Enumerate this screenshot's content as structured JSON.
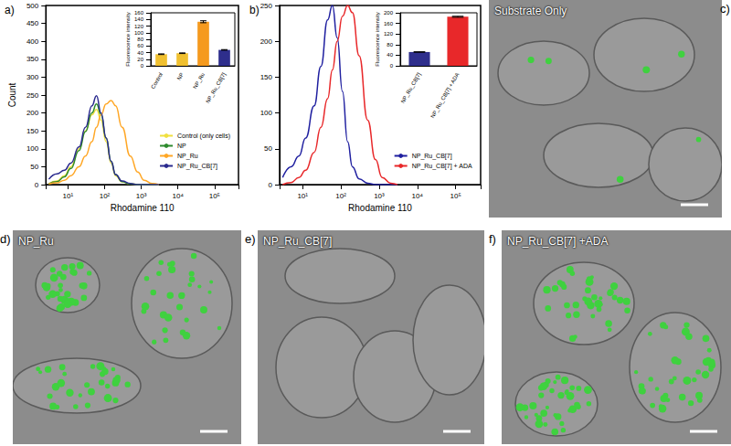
{
  "chart_data": [
    {
      "type": "line",
      "title": "a)",
      "x": [
        3,
        5,
        8,
        12,
        20,
        30,
        45,
        60,
        80,
        110,
        150,
        200,
        300,
        500,
        800,
        1200,
        2000,
        3000
      ],
      "series": [
        {
          "name": "Control (only cells)",
          "color": "#f0e040",
          "values": [
            2,
            10,
            25,
            50,
            100,
            150,
            195,
            210,
            180,
            120,
            60,
            25,
            8,
            2,
            0,
            0,
            0,
            0
          ]
        },
        {
          "name": "NP",
          "color": "#2e8b2e",
          "values": [
            2,
            8,
            22,
            45,
            95,
            148,
            200,
            225,
            195,
            130,
            65,
            28,
            8,
            2,
            0,
            0,
            0,
            0
          ]
        },
        {
          "name": "NP_Ru",
          "color": "#ffa726",
          "values": [
            2,
            5,
            12,
            25,
            50,
            80,
            120,
            160,
            195,
            225,
            235,
            220,
            160,
            80,
            35,
            12,
            3,
            0
          ]
        },
        {
          "name": "NP_Ru_CB[7]",
          "color": "#2b2b8f",
          "values": [
            15,
            30,
            40,
            60,
            105,
            160,
            220,
            248,
            200,
            130,
            65,
            28,
            10,
            3,
            0,
            0,
            0,
            0
          ]
        }
      ],
      "xlabel": "Rhodamine 110",
      "ylabel": "Count",
      "log": "x",
      "xlim": [
        2.5,
        450000
      ],
      "xticks": [
        {
          "value": 10,
          "label": "10¹"
        },
        {
          "value": 100,
          "label": "10²"
        },
        {
          "value": 1000,
          "label": "10³"
        },
        {
          "value": 10000,
          "label": "10⁴"
        },
        {
          "value": 100000,
          "label": "10⁵"
        }
      ],
      "ylim": [
        0,
        500
      ],
      "yticks": [
        0,
        50,
        100,
        150,
        200,
        250,
        300,
        350,
        400,
        450,
        500
      ],
      "legend": "lower right"
    },
    {
      "type": "bar",
      "categories": [
        "Control",
        "NP",
        "NP_Ru",
        "NP_Ru_CB[7]"
      ],
      "values": [
        35,
        38,
        133,
        48
      ],
      "errors": [
        1,
        1,
        3,
        1
      ],
      "colors": [
        "#f0c030",
        "#f0c030",
        "#f59a1e",
        "#2e2e8c"
      ],
      "ylabel": "Fluorescence intensity",
      "ylim": [
        0,
        160
      ],
      "yticks": [
        0,
        20,
        40,
        60,
        80,
        100,
        120,
        140,
        160
      ]
    },
    {
      "type": "line",
      "title": "b)",
      "x": [
        3,
        5,
        8,
        12,
        20,
        30,
        45,
        60,
        80,
        110,
        150,
        200,
        300,
        500,
        800,
        1200,
        2000,
        3000
      ],
      "series": [
        {
          "name": "NP_Ru_CB[7]",
          "color": "#2020a0",
          "values": [
            10,
            25,
            40,
            65,
            110,
            165,
            230,
            250,
            205,
            130,
            60,
            25,
            8,
            2,
            0,
            0,
            0,
            0
          ]
        },
        {
          "name": "NP_Ru_CB[7] + ADA",
          "color": "#e8282a",
          "values": [
            0,
            3,
            10,
            20,
            45,
            80,
            120,
            160,
            200,
            235,
            250,
            240,
            180,
            90,
            35,
            10,
            2,
            0
          ]
        }
      ],
      "xlabel": "Rhodamine 110",
      "log": "x",
      "xlim": [
        2.5,
        450000
      ],
      "xticks": [
        {
          "value": 10,
          "label": "10¹"
        },
        {
          "value": 100,
          "label": "10²"
        },
        {
          "value": 1000,
          "label": "10³"
        },
        {
          "value": 10000,
          "label": "10⁴"
        },
        {
          "value": 100000,
          "label": "10⁵"
        }
      ],
      "ylim": [
        0,
        250
      ],
      "yticks": [
        0,
        50,
        100,
        150,
        200,
        250
      ],
      "legend": "lower right"
    },
    {
      "type": "bar",
      "categories": [
        "NP_Ru_CB[7]",
        "NP_Ru_CB[7] + ADA"
      ],
      "values": [
        52,
        185
      ],
      "errors": [
        1,
        2
      ],
      "colors": [
        "#2e2e8c",
        "#e8282a"
      ],
      "ylabel": "Fluorescence intensity",
      "ylim": [
        0,
        200
      ],
      "yticks": [
        0,
        40,
        80,
        120,
        160,
        200
      ]
    }
  ],
  "images": [
    {
      "label": "c)",
      "title": "Substrate Only"
    },
    {
      "label": "d)",
      "title": "NP_Ru"
    },
    {
      "label": "e)",
      "title": "NP_Ru_CB[7]"
    },
    {
      "label": "f)",
      "title": "NP_Ru_CB[7] +ADA"
    }
  ]
}
